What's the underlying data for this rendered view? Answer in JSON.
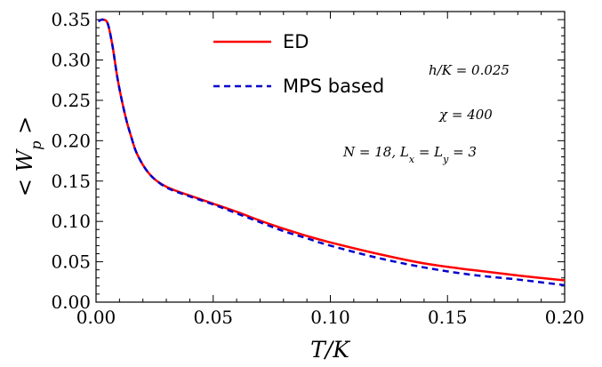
{
  "chart_data": {
    "type": "line",
    "xlabel": "T/K",
    "ylabel": "< W_p >",
    "xlim": [
      0,
      0.2
    ],
    "ylim": [
      0,
      0.36
    ],
    "x_ticks": [
      0.0,
      0.05,
      0.1,
      0.15,
      0.2
    ],
    "x_tick_labels": [
      "0.00",
      "0.05",
      "0.10",
      "0.15",
      "0.20"
    ],
    "y_ticks": [
      0.0,
      0.05,
      0.1,
      0.15,
      0.2,
      0.25,
      0.3,
      0.35
    ],
    "y_tick_labels": [
      "0.00",
      "0.05",
      "0.10",
      "0.15",
      "0.20",
      "0.25",
      "0.30",
      "0.35"
    ],
    "grid": false,
    "legend_position": "top-center",
    "series": [
      {
        "name": "ED",
        "color": "#ff0000",
        "style": "solid",
        "x": [
          0.001,
          0.003,
          0.005,
          0.007,
          0.009,
          0.011,
          0.013,
          0.015,
          0.017,
          0.02,
          0.023,
          0.026,
          0.03,
          0.035,
          0.04,
          0.05,
          0.06,
          0.07,
          0.08,
          0.09,
          0.1,
          0.12,
          0.14,
          0.16,
          0.18,
          0.2
        ],
        "y": [
          0.348,
          0.35,
          0.345,
          0.318,
          0.28,
          0.25,
          0.225,
          0.205,
          0.187,
          0.17,
          0.158,
          0.15,
          0.143,
          0.137,
          0.132,
          0.122,
          0.112,
          0.101,
          0.091,
          0.082,
          0.074,
          0.06,
          0.048,
          0.04,
          0.033,
          0.027
        ]
      },
      {
        "name": "MPS based",
        "color": "#0000cc",
        "style": "dashed",
        "x": [
          0.001,
          0.003,
          0.005,
          0.007,
          0.009,
          0.011,
          0.013,
          0.015,
          0.017,
          0.02,
          0.023,
          0.026,
          0.03,
          0.035,
          0.04,
          0.05,
          0.06,
          0.07,
          0.08,
          0.09,
          0.1,
          0.12,
          0.14,
          0.16,
          0.18,
          0.2
        ],
        "y": [
          0.348,
          0.35,
          0.345,
          0.318,
          0.28,
          0.25,
          0.225,
          0.205,
          0.187,
          0.17,
          0.158,
          0.15,
          0.142,
          0.136,
          0.131,
          0.121,
          0.11,
          0.099,
          0.088,
          0.079,
          0.07,
          0.055,
          0.043,
          0.034,
          0.028,
          0.021
        ]
      }
    ],
    "annotations": [
      "h/K = 0.025",
      "χ = 400",
      "N = 18, L_x = L_y = 3"
    ]
  }
}
